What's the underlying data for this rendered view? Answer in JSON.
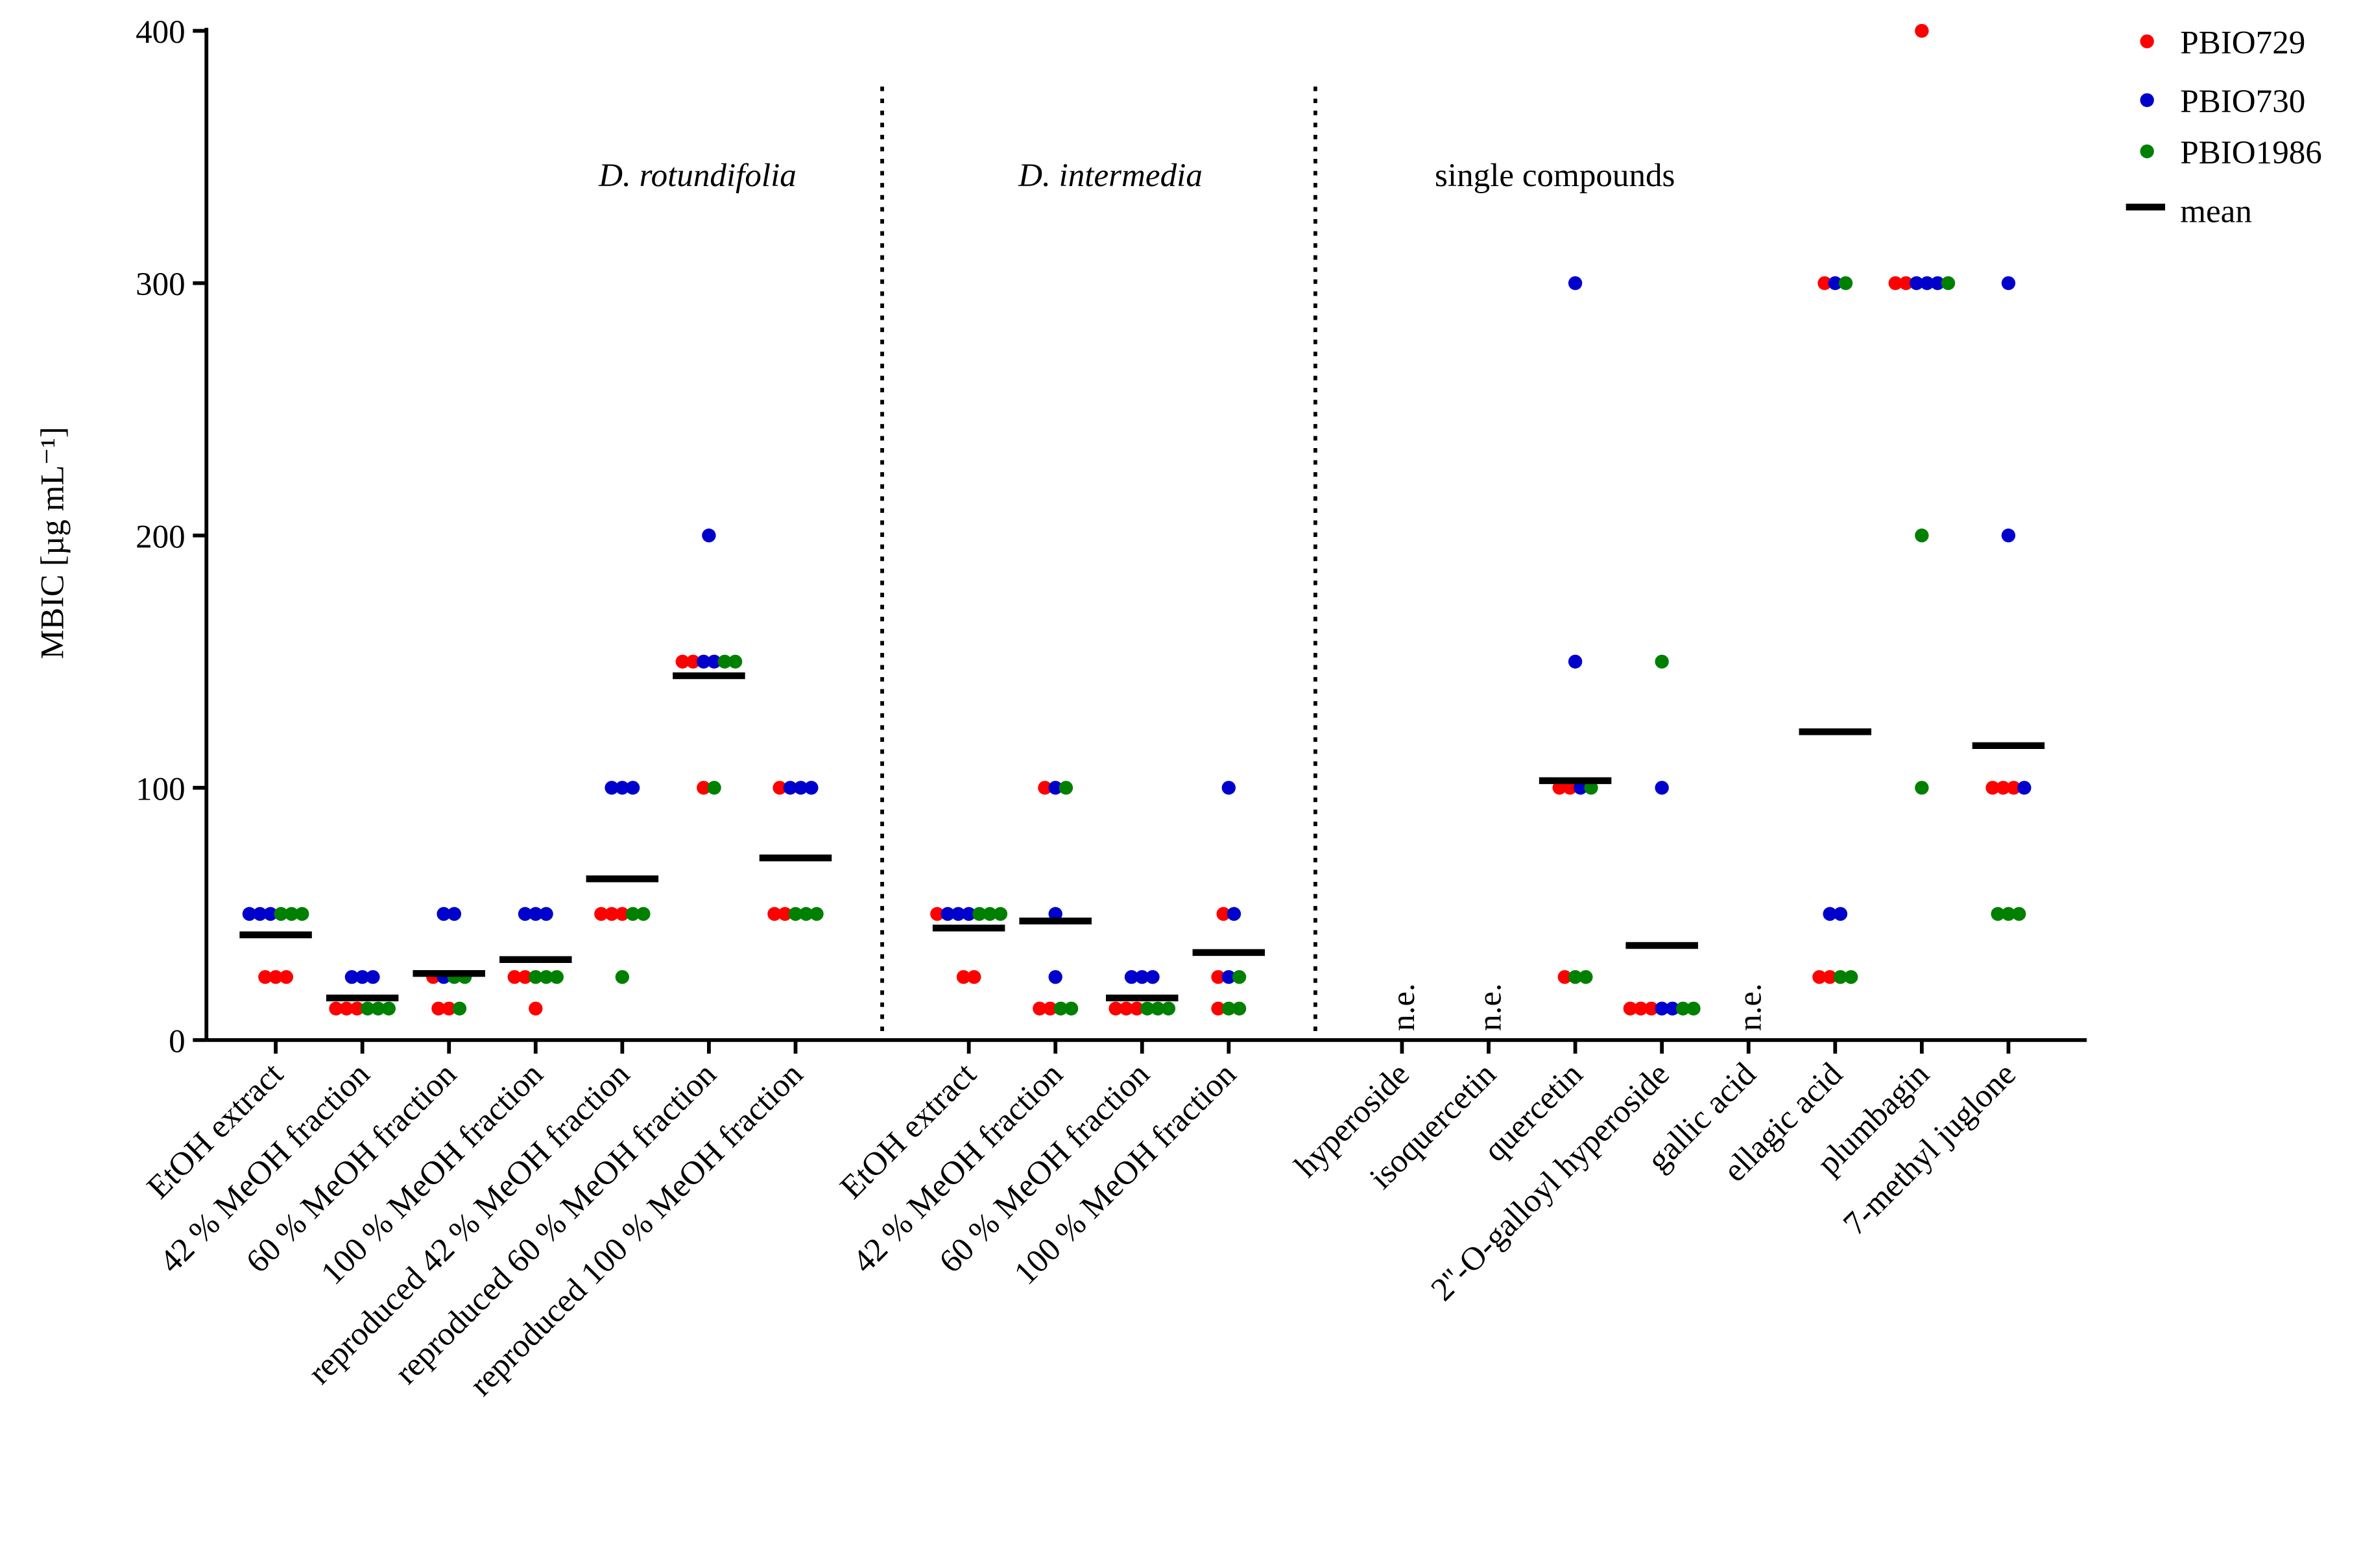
{
  "chart_data": {
    "type": "dot",
    "y_label": "MBIC [µg mL⁻¹]",
    "ylim": [
      0,
      400
    ],
    "yticks": [
      0,
      100,
      200,
      300,
      400
    ],
    "groups": [
      {
        "label": "D. rotundifolia",
        "categories": [
          "EtOH extract",
          "42 % MeOH fraction",
          "60 % MeOH fraction",
          "100 % MeOH fraction",
          "reproduced 42 % MeOH fraction",
          "reproduced 60 % MeOH fraction",
          "reproduced 100 % MeOH fraction"
        ]
      },
      {
        "label": "D. intermedia",
        "categories": [
          "EtOH extract",
          "42 % MeOH fraction",
          "60 % MeOH fraction",
          "100 % MeOH fraction"
        ]
      },
      {
        "label": "single compounds",
        "categories": [
          "hyperoside",
          "isoquercetin",
          "quercetin",
          "2''-O-galloyl hyperoside",
          "gallic acid",
          "ellagic acid",
          "plumbagin",
          "7-methyl juglone"
        ]
      }
    ],
    "annotations": [
      null,
      null,
      null,
      null,
      null,
      null,
      null,
      null,
      null,
      null,
      null,
      "n.e.",
      "n.e.",
      null,
      null,
      "n.e.",
      null,
      null,
      null
    ],
    "series": [
      {
        "name": "PBIO729",
        "color": "#ff0000",
        "values": [
          [
            25,
            25,
            25
          ],
          [
            12.5,
            12.5,
            12.5
          ],
          [
            12.5,
            12.5,
            25
          ],
          [
            25,
            25,
            12.5
          ],
          [
            50,
            50,
            50
          ],
          [
            150,
            150,
            100
          ],
          [
            100,
            50,
            50
          ],
          [
            50,
            25,
            25
          ],
          [
            100,
            12.5,
            12.5
          ],
          [
            12.5,
            12.5,
            12.5
          ],
          [
            50,
            25,
            12.5
          ],
          null,
          null,
          [
            100,
            100,
            25
          ],
          [
            12.5,
            12.5,
            12.5
          ],
          null,
          [
            300,
            25,
            25
          ],
          [
            400,
            300,
            300
          ],
          [
            100,
            100,
            100
          ]
        ]
      },
      {
        "name": "PBIO730",
        "color": "#0000cc",
        "values": [
          [
            50,
            50,
            50
          ],
          [
            25,
            25,
            25
          ],
          [
            50,
            50,
            25
          ],
          [
            50,
            50,
            50
          ],
          [
            100,
            100,
            100
          ],
          [
            200,
            150,
            150
          ],
          [
            100,
            100,
            100
          ],
          [
            50,
            50,
            50
          ],
          [
            100,
            50,
            25
          ],
          [
            25,
            25,
            25
          ],
          [
            100,
            50,
            25
          ],
          null,
          null,
          [
            300,
            150,
            100
          ],
          [
            100,
            12.5,
            12.5
          ],
          null,
          [
            300,
            50,
            50
          ],
          [
            300,
            300,
            300
          ],
          [
            300,
            200,
            100
          ]
        ]
      },
      {
        "name": "PBIO1986",
        "color": "#008000",
        "values": [
          [
            50,
            50,
            50
          ],
          [
            12.5,
            12.5,
            12.5
          ],
          [
            25,
            25,
            12.5
          ],
          [
            25,
            25,
            25
          ],
          [
            50,
            50,
            25
          ],
          [
            150,
            150,
            100
          ],
          [
            50,
            50,
            50
          ],
          [
            50,
            50,
            50
          ],
          [
            100,
            12.5,
            12.5
          ],
          [
            12.5,
            12.5,
            12.5
          ],
          [
            25,
            12.5,
            12.5
          ],
          null,
          null,
          [
            100,
            25,
            25
          ],
          [
            150,
            12.5,
            12.5
          ],
          null,
          [
            300,
            25,
            25
          ],
          [
            300,
            200,
            100
          ],
          [
            50,
            50,
            50
          ]
        ]
      },
      {
        "name": "mean",
        "color": "#000000",
        "values": [
          41.7,
          16.7,
          26.4,
          31.9,
          63.9,
          144.4,
          72.2,
          44.4,
          47.2,
          16.7,
          34.7,
          null,
          null,
          102.8,
          37.5,
          null,
          122.2,
          null,
          116.7
        ]
      }
    ]
  }
}
